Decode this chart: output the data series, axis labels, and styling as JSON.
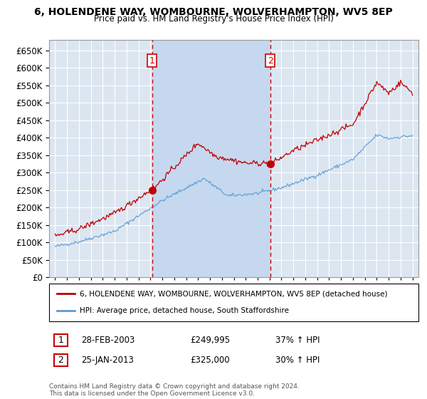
{
  "title": "6, HOLENDENE WAY, WOMBOURNE, WOLVERHAMPTON, WV5 8EP",
  "subtitle": "Price paid vs. HM Land Registry's House Price Index (HPI)",
  "red_label": "6, HOLENDENE WAY, WOMBOURNE, WOLVERHAMPTON, WV5 8EP (detached house)",
  "blue_label": "HPI: Average price, detached house, South Staffordshire",
  "transaction1_date": "28-FEB-2003",
  "transaction1_price": "£249,995",
  "transaction1_hpi": "37% ↑ HPI",
  "transaction2_date": "25-JAN-2013",
  "transaction2_price": "£325,000",
  "transaction2_hpi": "30% ↑ HPI",
  "vline1_x": 2003.15,
  "vline2_x": 2013.07,
  "marker1_x": 2003.15,
  "marker1_y": 249995,
  "marker2_x": 2013.07,
  "marker2_y": 325000,
  "ylim": [
    0,
    680000
  ],
  "xlim": [
    1994.5,
    2025.5
  ],
  "yticks": [
    0,
    50000,
    100000,
    150000,
    200000,
    250000,
    300000,
    350000,
    400000,
    450000,
    500000,
    550000,
    600000,
    650000
  ],
  "footer": "Contains HM Land Registry data © Crown copyright and database right 2024.\nThis data is licensed under the Open Government Licence v3.0.",
  "background_color": "#ffffff",
  "plot_bg_color": "#dce6f1",
  "shade_between_color": "#c5d8ef",
  "grid_color": "#ffffff",
  "red_color": "#c00000",
  "blue_color": "#5b9bd5",
  "vline_color": "#cc0000"
}
